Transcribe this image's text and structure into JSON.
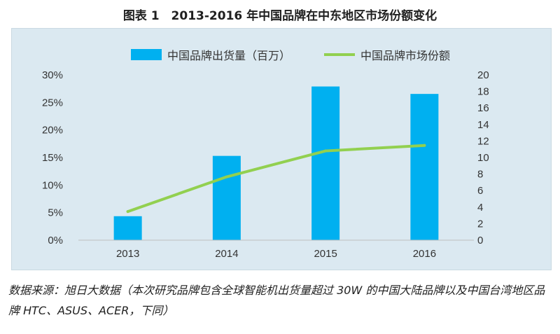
{
  "title": "图表 1　2013-2016 年中国品牌在中东地区市场份额变化",
  "chart_data": {
    "type": "bar",
    "categories": [
      "2013",
      "2014",
      "2015",
      "2016"
    ],
    "series": [
      {
        "name": "中国品牌出货量（百万）",
        "type": "bar",
        "axis": "right",
        "values": [
          2.9,
          10.2,
          18.6,
          17.7
        ],
        "color": "#00b0f0"
      },
      {
        "name": "中国品牌市场份额",
        "type": "line",
        "axis": "left",
        "values": [
          5.2,
          11.5,
          16.2,
          17.2
        ],
        "color": "#92d050"
      }
    ],
    "y_left": {
      "ylim": [
        0,
        30
      ],
      "ticks": [
        "0%",
        "5%",
        "10%",
        "15%",
        "20%",
        "25%",
        "30%"
      ],
      "values": [
        0,
        5,
        10,
        15,
        20,
        25,
        30
      ]
    },
    "y_right": {
      "ylim": [
        0,
        20
      ],
      "ticks": [
        "0",
        "2",
        "4",
        "6",
        "8",
        "10",
        "12",
        "14",
        "16",
        "18",
        "20"
      ],
      "values": [
        0,
        2,
        4,
        6,
        8,
        10,
        12,
        14,
        16,
        18,
        20
      ]
    },
    "grid": false,
    "legend_position": "top-center"
  },
  "footnote": "数据来源：旭日大数据（本次研究品牌包含全球智能机出货量超过 30W 的中国大陆品牌以及中国台湾地区品牌 HTC、ASUS、ACER，下同）"
}
